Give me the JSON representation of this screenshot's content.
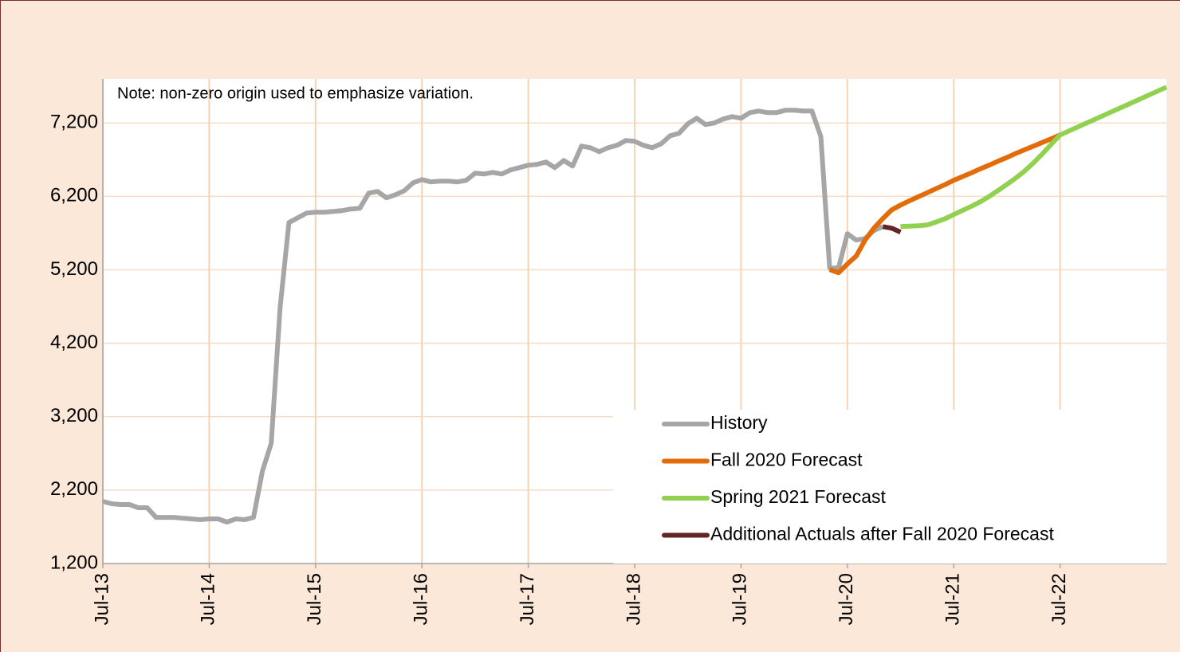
{
  "chart_data": {
    "type": "line",
    "note": "Note: non-zero origin used to emphasize variation.",
    "xlim": [
      "2013-07",
      "2023-07"
    ],
    "xticks": [
      {
        "value": "2013-07",
        "label": "Jul-13"
      },
      {
        "value": "2014-07",
        "label": "Jul-14"
      },
      {
        "value": "2015-07",
        "label": "Jul-15"
      },
      {
        "value": "2016-07",
        "label": "Jul-16"
      },
      {
        "value": "2017-07",
        "label": "Jul-17"
      },
      {
        "value": "2018-07",
        "label": "Jul-18"
      },
      {
        "value": "2019-07",
        "label": "Jul-19"
      },
      {
        "value": "2020-07",
        "label": "Jul-20"
      },
      {
        "value": "2021-07",
        "label": "Jul-21"
      },
      {
        "value": "2022-07",
        "label": "Jul-22"
      }
    ],
    "ylim": [
      1200,
      7800
    ],
    "yticks": [
      {
        "value": 1200,
        "label": "1,200"
      },
      {
        "value": 2200,
        "label": "2,200"
      },
      {
        "value": 3200,
        "label": "3,200"
      },
      {
        "value": 4200,
        "label": "4,200"
      },
      {
        "value": 5200,
        "label": "5,200"
      },
      {
        "value": 6200,
        "label": "6,200"
      },
      {
        "value": 7200,
        "label": "7,200"
      }
    ],
    "grid": true,
    "legend": "lower right",
    "series": [
      {
        "name": "History",
        "color": "#a6a6a6",
        "x": [
          "2013-07",
          "2013-08",
          "2013-09",
          "2013-10",
          "2013-11",
          "2013-12",
          "2014-01",
          "2014-02",
          "2014-03",
          "2014-04",
          "2014-05",
          "2014-06",
          "2014-07",
          "2014-08",
          "2014-09",
          "2014-10",
          "2014-11",
          "2014-12",
          "2015-01",
          "2015-02",
          "2015-03",
          "2015-04",
          "2015-05",
          "2015-06",
          "2015-07",
          "2015-08",
          "2015-09",
          "2015-10",
          "2015-11",
          "2015-12",
          "2016-01",
          "2016-02",
          "2016-03",
          "2016-04",
          "2016-05",
          "2016-06",
          "2016-07",
          "2016-08",
          "2016-09",
          "2016-10",
          "2016-11",
          "2016-12",
          "2017-01",
          "2017-02",
          "2017-03",
          "2017-04",
          "2017-05",
          "2017-06",
          "2017-07",
          "2017-08",
          "2017-09",
          "2017-10",
          "2017-11",
          "2017-12",
          "2018-01",
          "2018-02",
          "2018-03",
          "2018-04",
          "2018-05",
          "2018-06",
          "2018-07",
          "2018-08",
          "2018-09",
          "2018-10",
          "2018-11",
          "2018-12",
          "2019-01",
          "2019-02",
          "2019-03",
          "2019-04",
          "2019-05",
          "2019-06",
          "2019-07",
          "2019-08",
          "2019-09",
          "2019-10",
          "2019-11",
          "2019-12",
          "2020-01",
          "2020-02",
          "2020-03",
          "2020-04",
          "2020-05",
          "2020-06",
          "2020-07",
          "2020-08",
          "2020-09",
          "2020-10",
          "2020-11"
        ],
        "values": [
          2046,
          2014,
          2003,
          2003,
          1960,
          1960,
          1829,
          1829,
          1829,
          1818,
          1808,
          1797,
          1808,
          1808,
          1764,
          1808,
          1797,
          1829,
          2458,
          2838,
          4683,
          5844,
          5909,
          5974,
          5985,
          5985,
          5996,
          6007,
          6028,
          6039,
          6245,
          6267,
          6180,
          6223,
          6277,
          6386,
          6429,
          6397,
          6408,
          6408,
          6397,
          6419,
          6516,
          6505,
          6527,
          6505,
          6560,
          6592,
          6625,
          6636,
          6668,
          6592,
          6690,
          6614,
          6885,
          6863,
          6809,
          6863,
          6896,
          6961,
          6950,
          6896,
          6863,
          6918,
          7026,
          7059,
          7189,
          7265,
          7178,
          7200,
          7254,
          7287,
          7265,
          7341,
          7363,
          7341,
          7341,
          7373,
          7373,
          7363,
          7363,
          7015,
          5225,
          5225,
          5692,
          5605,
          5627,
          5735,
          5789
        ]
      },
      {
        "name": "Fall 2020 Forecast",
        "color": "#e36c0a",
        "x": [
          "2020-05",
          "2020-06",
          "2020-07",
          "2020-08",
          "2020-09",
          "2020-10",
          "2020-11",
          "2020-12",
          "2021-01",
          "2021-02",
          "2021-03",
          "2021-04",
          "2021-05",
          "2021-06",
          "2021-07",
          "2021-08",
          "2021-09",
          "2021-10",
          "2021-11",
          "2021-12",
          "2022-01",
          "2022-02",
          "2022-03",
          "2022-04",
          "2022-05",
          "2022-06",
          "2022-07"
        ],
        "values": [
          5203,
          5160,
          5279,
          5388,
          5605,
          5768,
          5898,
          6017,
          6082,
          6140,
          6195,
          6250,
          6305,
          6360,
          6419,
          6470,
          6520,
          6575,
          6625,
          6680,
          6730,
          6785,
          6835,
          6885,
          6935,
          6985,
          7037
        ]
      },
      {
        "name": "Spring 2021 Forecast",
        "color": "#92d050",
        "x": [
          "2021-01",
          "2021-02",
          "2021-03",
          "2021-04",
          "2021-05",
          "2021-06",
          "2021-07",
          "2021-08",
          "2021-09",
          "2021-10",
          "2021-11",
          "2021-12",
          "2022-01",
          "2022-02",
          "2022-03",
          "2022-04",
          "2022-05",
          "2022-06",
          "2022-07",
          "2022-08",
          "2022-09",
          "2022-10",
          "2022-11",
          "2022-12",
          "2023-01",
          "2023-02",
          "2023-03",
          "2023-04",
          "2023-05",
          "2023-06",
          "2023-07"
        ],
        "values": [
          5789,
          5795,
          5800,
          5811,
          5850,
          5895,
          5952,
          6010,
          6065,
          6126,
          6200,
          6280,
          6364,
          6450,
          6545,
          6657,
          6780,
          6910,
          7037,
          7091,
          7145,
          7200,
          7254,
          7308,
          7362,
          7416,
          7470,
          7524,
          7580,
          7634,
          7688
        ]
      },
      {
        "name": "Additional Actuals after Fall 2020 Forecast",
        "color": "#632523",
        "x": [
          "2020-11",
          "2020-12",
          "2021-01"
        ],
        "values": [
          5789,
          5767,
          5714
        ]
      }
    ]
  }
}
